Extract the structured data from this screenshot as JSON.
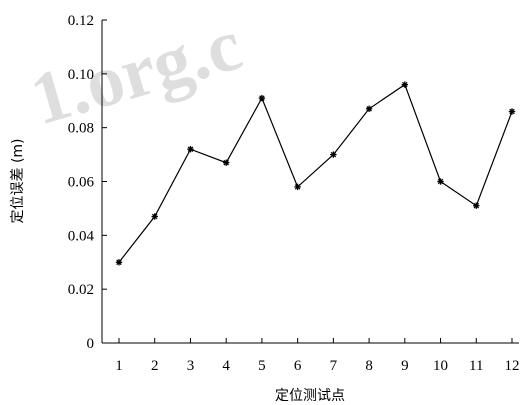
{
  "chart_data": {
    "type": "line",
    "xlabel": "定位测试点",
    "ylabel": "定位误差 (m)",
    "categories": [
      "1",
      "2",
      "3",
      "4",
      "5",
      "6",
      "7",
      "8",
      "9",
      "10",
      "11",
      "12"
    ],
    "y_tick_labels": [
      "0",
      "0.02",
      "0.04",
      "0.06",
      "0.08",
      "0.10",
      "0.12"
    ],
    "ylim": [
      0,
      0.12
    ],
    "series": [
      {
        "values": [
          0.03,
          0.047,
          0.072,
          0.067,
          0.091,
          0.058,
          0.07,
          0.087,
          0.096,
          0.06,
          0.051,
          0.086
        ]
      }
    ],
    "marker": "asterisk",
    "line_color": "#000000",
    "grid": false,
    "watermark": "1.org.c"
  }
}
